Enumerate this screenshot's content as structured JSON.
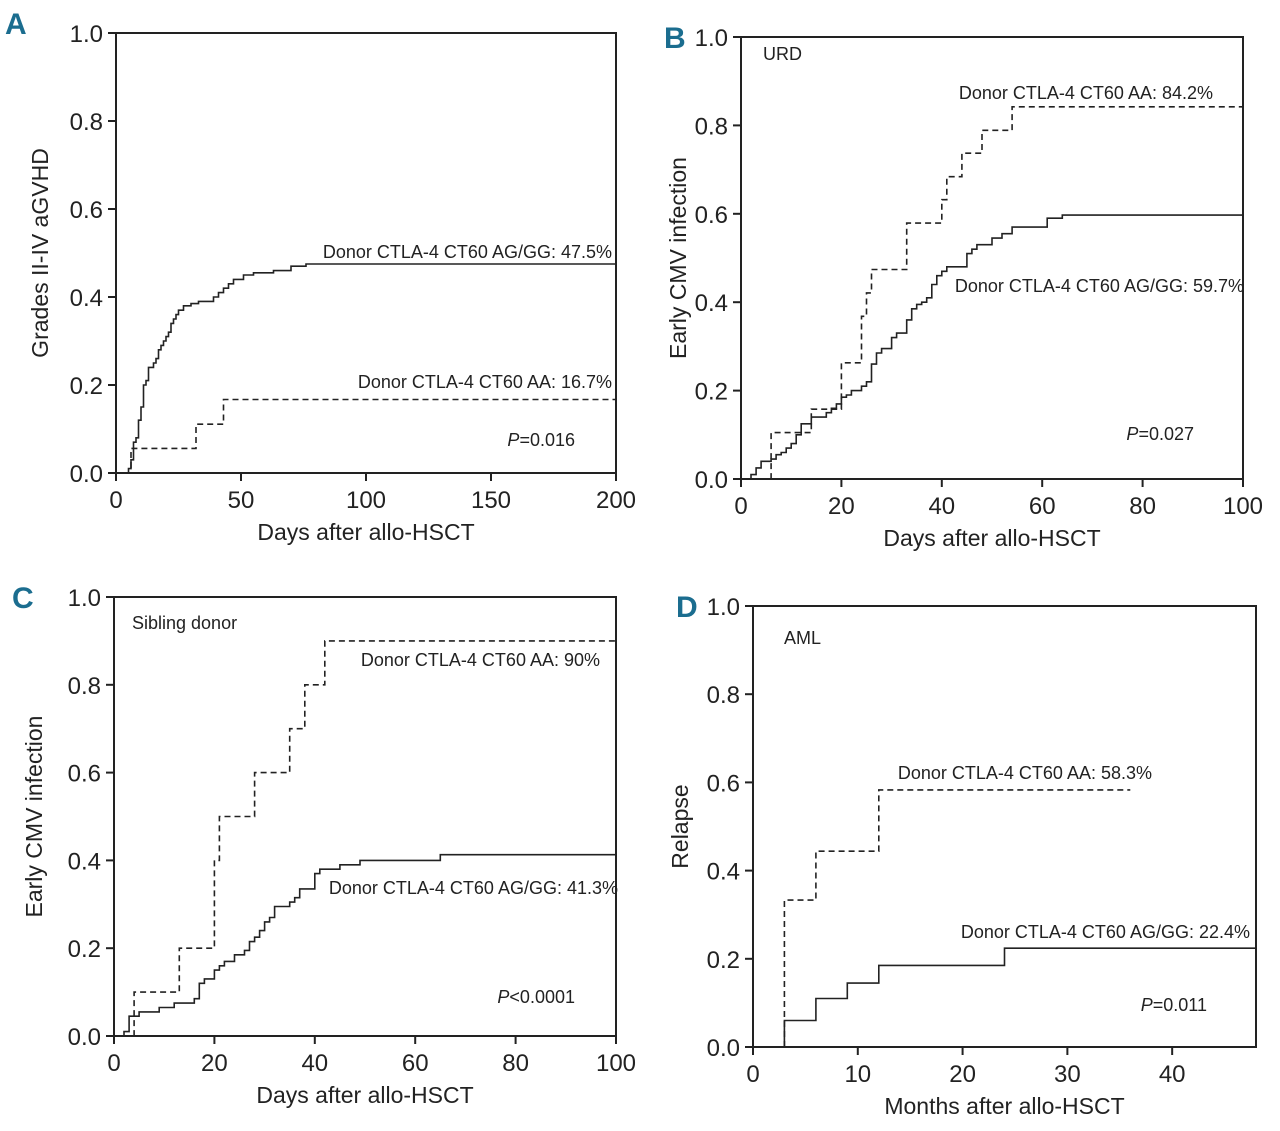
{
  "chart_data": [
    {
      "panel": "A",
      "type": "line",
      "step": true,
      "title": "",
      "subtitle": "",
      "xlabel": "Days after allo-HSCT",
      "ylabel": "Grades II-IV aGVHD",
      "xlim": [
        0,
        200
      ],
      "ylim": [
        0,
        1.0
      ],
      "xticks": [
        0,
        50,
        100,
        150,
        200
      ],
      "yticks": [
        0.0,
        0.2,
        0.4,
        0.6,
        0.8,
        1.0
      ],
      "ytick_labels": [
        "0.0",
        "0.2",
        "0.4",
        "0.6",
        "0.8",
        "1.0"
      ],
      "grid": false,
      "pvalue": {
        "italic": "P",
        "text": "=0.016"
      },
      "series": [
        {
          "name": "Donor CTLA-4 CT60 AG/GG: 47.5%",
          "style": "solid",
          "points": [
            [
              0,
              0
            ],
            [
              5,
              0
            ],
            [
              5,
              0.01
            ],
            [
              6,
              0.03
            ],
            [
              7,
              0.07
            ],
            [
              8,
              0.08
            ],
            [
              9,
              0.12
            ],
            [
              10,
              0.15
            ],
            [
              11,
              0.2
            ],
            [
              12,
              0.21
            ],
            [
              13,
              0.24
            ],
            [
              15,
              0.25
            ],
            [
              16,
              0.26
            ],
            [
              17,
              0.28
            ],
            [
              18,
              0.29
            ],
            [
              19,
              0.3
            ],
            [
              20,
              0.31
            ],
            [
              21,
              0.32
            ],
            [
              22,
              0.34
            ],
            [
              23,
              0.35
            ],
            [
              24,
              0.36
            ],
            [
              25,
              0.37
            ],
            [
              27,
              0.38
            ],
            [
              30,
              0.385
            ],
            [
              33,
              0.39
            ],
            [
              39,
              0.4
            ],
            [
              41,
              0.41
            ],
            [
              43,
              0.42
            ],
            [
              45,
              0.43
            ],
            [
              47,
              0.44
            ],
            [
              51,
              0.45
            ],
            [
              55,
              0.455
            ],
            [
              63,
              0.46
            ],
            [
              70,
              0.47
            ],
            [
              76,
              0.475
            ],
            [
              200,
              0.475
            ]
          ],
          "label": "Donor CTLA-4 CT60 AG/GG: 47.5%"
        },
        {
          "name": "Donor CTLA-4 CT60 AA: 16.7%",
          "style": "dashed",
          "points": [
            [
              0,
              0
            ],
            [
              6,
              0
            ],
            [
              6,
              0.056
            ],
            [
              32,
              0.056
            ],
            [
              32,
              0.111
            ],
            [
              43,
              0.111
            ],
            [
              43,
              0.167
            ],
            [
              200,
              0.167
            ]
          ],
          "label": "Donor CTLA-4 CT60 AA: 16.7%"
        }
      ]
    },
    {
      "panel": "B",
      "type": "line",
      "step": true,
      "title": "",
      "subtitle": "URD",
      "xlabel": "Days after allo-HSCT",
      "ylabel": "Early CMV infection",
      "xlim": [
        0,
        100
      ],
      "ylim": [
        0,
        1.0
      ],
      "xticks": [
        0,
        20,
        40,
        60,
        80,
        100
      ],
      "yticks": [
        0.0,
        0.2,
        0.4,
        0.6,
        0.8,
        1.0
      ],
      "ytick_labels": [
        "0.0",
        "0.2",
        "0.4",
        "0.6",
        "0.8",
        "1.0"
      ],
      "grid": false,
      "pvalue": {
        "italic": "P",
        "text": "=0.027"
      },
      "series": [
        {
          "name": "Donor CTLA-4 CT60 AA: 84.2%",
          "style": "dashed",
          "points": [
            [
              0,
              0
            ],
            [
              6,
              0
            ],
            [
              6,
              0.105
            ],
            [
              14,
              0.105
            ],
            [
              14,
              0.158
            ],
            [
              20,
              0.158
            ],
            [
              20,
              0.263
            ],
            [
              24,
              0.263
            ],
            [
              24,
              0.368
            ],
            [
              25,
              0.421
            ],
            [
              26,
              0.474
            ],
            [
              33,
              0.474
            ],
            [
              33,
              0.579
            ],
            [
              40,
              0.579
            ],
            [
              40,
              0.632
            ],
            [
              41,
              0.684
            ],
            [
              44,
              0.684
            ],
            [
              44,
              0.737
            ],
            [
              48,
              0.737
            ],
            [
              48,
              0.789
            ],
            [
              54,
              0.789
            ],
            [
              54,
              0.842
            ],
            [
              100,
              0.842
            ]
          ],
          "label": "Donor CTLA-4 CT60 AA: 84.2%"
        },
        {
          "name": "Donor CTLA-4 CT60 AG/GG: 59.7%",
          "style": "solid",
          "points": [
            [
              0,
              0
            ],
            [
              2,
              0
            ],
            [
              2,
              0.01
            ],
            [
              3,
              0.025
            ],
            [
              4,
              0.04
            ],
            [
              6,
              0.045
            ],
            [
              7,
              0.055
            ],
            [
              8,
              0.06
            ],
            [
              9,
              0.07
            ],
            [
              10,
              0.08
            ],
            [
              11,
              0.1
            ],
            [
              12,
              0.125
            ],
            [
              14,
              0.14
            ],
            [
              17,
              0.15
            ],
            [
              18,
              0.16
            ],
            [
              19,
              0.17
            ],
            [
              20,
              0.185
            ],
            [
              21,
              0.19
            ],
            [
              22,
              0.2
            ],
            [
              24,
              0.21
            ],
            [
              25,
              0.22
            ],
            [
              26,
              0.26
            ],
            [
              27,
              0.285
            ],
            [
              28,
              0.295
            ],
            [
              30,
              0.32
            ],
            [
              31,
              0.33
            ],
            [
              33,
              0.36
            ],
            [
              34,
              0.385
            ],
            [
              35,
              0.395
            ],
            [
              36,
              0.4
            ],
            [
              37,
              0.41
            ],
            [
              38,
              0.44
            ],
            [
              39,
              0.46
            ],
            [
              40,
              0.47
            ],
            [
              41,
              0.48
            ],
            [
              45,
              0.51
            ],
            [
              46,
              0.52
            ],
            [
              47,
              0.53
            ],
            [
              50,
              0.545
            ],
            [
              52,
              0.555
            ],
            [
              54,
              0.57
            ],
            [
              61,
              0.59
            ],
            [
              64,
              0.597
            ],
            [
              100,
              0.597
            ]
          ],
          "label": "Donor CTLA-4 CT60 AG/GG: 59.7%"
        }
      ]
    },
    {
      "panel": "C",
      "type": "line",
      "step": true,
      "title": "",
      "subtitle": "Sibling donor",
      "xlabel": "Days after allo-HSCT",
      "ylabel": "Early CMV infection",
      "xlim": [
        0,
        100
      ],
      "ylim": [
        0,
        1.0
      ],
      "xticks": [
        0,
        20,
        40,
        60,
        80,
        100
      ],
      "yticks": [
        0.0,
        0.2,
        0.4,
        0.6,
        0.8,
        1.0
      ],
      "ytick_labels": [
        "0.0",
        "0.2",
        "0.4",
        "0.6",
        "0.8",
        "1.0"
      ],
      "grid": false,
      "pvalue": {
        "italic": "P",
        "text": "<0.0001"
      },
      "series": [
        {
          "name": "Donor CTLA-4 CT60 AA: 90%",
          "style": "dashed",
          "points": [
            [
              0,
              0
            ],
            [
              4,
              0
            ],
            [
              4,
              0.1
            ],
            [
              13,
              0.1
            ],
            [
              13,
              0.2
            ],
            [
              20,
              0.2
            ],
            [
              20,
              0.4
            ],
            [
              21,
              0.5
            ],
            [
              28,
              0.5
            ],
            [
              28,
              0.6
            ],
            [
              35,
              0.6
            ],
            [
              35,
              0.7
            ],
            [
              38,
              0.7
            ],
            [
              38,
              0.8
            ],
            [
              42,
              0.8
            ],
            [
              42,
              0.9
            ],
            [
              100,
              0.9
            ]
          ],
          "label": "Donor CTLA-4 CT60 AA: 90%"
        },
        {
          "name": "Donor CTLA-4 CT60 AG/GG: 41.3%",
          "style": "solid",
          "points": [
            [
              0,
              0
            ],
            [
              2,
              0
            ],
            [
              2,
              0.01
            ],
            [
              3,
              0.045
            ],
            [
              5,
              0.055
            ],
            [
              9,
              0.065
            ],
            [
              12,
              0.075
            ],
            [
              16,
              0.085
            ],
            [
              17,
              0.12
            ],
            [
              18,
              0.13
            ],
            [
              20,
              0.15
            ],
            [
              21,
              0.16
            ],
            [
              22,
              0.17
            ],
            [
              24,
              0.185
            ],
            [
              26,
              0.195
            ],
            [
              27,
              0.215
            ],
            [
              28,
              0.225
            ],
            [
              29,
              0.24
            ],
            [
              30,
              0.26
            ],
            [
              31,
              0.27
            ],
            [
              32,
              0.295
            ],
            [
              35,
              0.305
            ],
            [
              36,
              0.315
            ],
            [
              37,
              0.335
            ],
            [
              40,
              0.37
            ],
            [
              41,
              0.38
            ],
            [
              45,
              0.39
            ],
            [
              49,
              0.4
            ],
            [
              65,
              0.413
            ],
            [
              100,
              0.413
            ]
          ],
          "label": "Donor CTLA-4 CT60 AG/GG: 41.3%"
        }
      ]
    },
    {
      "panel": "D",
      "type": "line",
      "step": true,
      "title": "",
      "subtitle": "AML",
      "xlabel": "Months after allo-HSCT",
      "ylabel": "Relapse",
      "xlim": [
        0,
        48
      ],
      "ylim": [
        0,
        1.0
      ],
      "xticks": [
        0,
        10,
        20,
        30,
        40
      ],
      "yticks": [
        0.0,
        0.2,
        0.4,
        0.6,
        0.8,
        1.0
      ],
      "ytick_labels": [
        "0.0",
        "0.2",
        "0.4",
        "0.6",
        "0.8",
        "1.0"
      ],
      "grid": false,
      "pvalue": {
        "italic": "P",
        "text": "=0.011"
      },
      "series": [
        {
          "name": "Donor CTLA-4 CT60 AA: 58.3%",
          "style": "dashed",
          "points": [
            [
              3,
              0
            ],
            [
              3,
              0.333
            ],
            [
              6,
              0.333
            ],
            [
              6,
              0.444
            ],
            [
              12,
              0.444
            ],
            [
              12,
              0.583
            ],
            [
              36,
              0.583
            ]
          ],
          "label": "Donor CTLA-4 CT60 AA: 58.3%"
        },
        {
          "name": "Donor CTLA-4 CT60 AG/GG: 22.4%",
          "style": "solid",
          "points": [
            [
              3,
              0
            ],
            [
              3,
              0.06
            ],
            [
              6,
              0.06
            ],
            [
              6,
              0.11
            ],
            [
              9,
              0.11
            ],
            [
              9,
              0.145
            ],
            [
              12,
              0.145
            ],
            [
              12,
              0.185
            ],
            [
              24,
              0.185
            ],
            [
              24,
              0.224
            ],
            [
              48,
              0.224
            ]
          ],
          "label": "Donor CTLA-4 CT60 AG/GG: 22.4%"
        }
      ]
    }
  ],
  "panel_letters": [
    "A",
    "B",
    "C",
    "D"
  ]
}
